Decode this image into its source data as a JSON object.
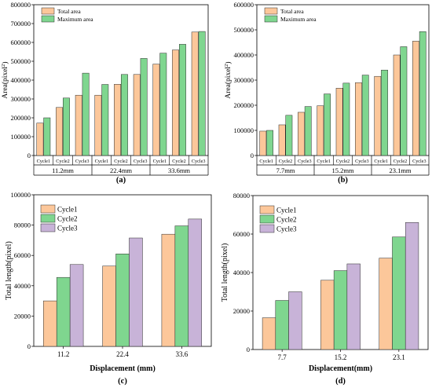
{
  "colors": {
    "total": "#fcc79a",
    "max": "#7fd68f",
    "cycle1": "#fcc79a",
    "cycle2": "#7fd68f",
    "cycle3": "#c8b3d8",
    "stroke": "#2a2a2a"
  },
  "chart_data": [
    {
      "type": "bar",
      "panel_label": "(a)",
      "ylabel": "Area(pixel²)",
      "ylim": [
        0,
        800000
      ],
      "yticks": [
        0,
        100000,
        200000,
        300000,
        400000,
        500000,
        600000,
        700000,
        800000
      ],
      "ytick_labels": [
        "0",
        "100000",
        "200000",
        "300000",
        "400000",
        "500000",
        "600000",
        "700000",
        "800000"
      ],
      "groups": [
        "11.2mm",
        "22.4mm",
        "33.6mm"
      ],
      "subcategories": [
        "Cycle1",
        "Cycle2",
        "Cycle3"
      ],
      "legend_position": "top-left",
      "series": [
        {
          "name": "Total area",
          "values": [
            [
              172000,
              255000,
              320000
            ],
            [
              320000,
              378000,
              430000
            ],
            [
              485000,
              560000,
              655000
            ]
          ]
        },
        {
          "name": "Maximum area",
          "values": [
            [
              200000,
              305000,
              437000
            ],
            [
              377000,
              430000,
              515000
            ],
            [
              543000,
              590000,
              658000
            ]
          ]
        }
      ]
    },
    {
      "type": "bar",
      "panel_label": "(b)",
      "ylabel": "Area(pixel²)",
      "ylim": [
        0,
        600000
      ],
      "yticks": [
        0,
        100000,
        200000,
        300000,
        400000,
        500000,
        600000
      ],
      "ytick_labels": [
        "0",
        "100000",
        "200000",
        "300000",
        "400000",
        "500000",
        "600000"
      ],
      "groups": [
        "7.7mm",
        "15.2mm",
        "23.1mm"
      ],
      "subcategories": [
        "Cycle1",
        "Cycle2",
        "Cycle3"
      ],
      "legend_position": "top-left",
      "series": [
        {
          "name": "Total area",
          "values": [
            [
              97000,
              122000,
              172000
            ],
            [
              198000,
              268000,
              290000
            ],
            [
              315000,
              400000,
              455000
            ]
          ]
        },
        {
          "name": "Maximum area",
          "values": [
            [
              100000,
              160000,
              195000
            ],
            [
              245000,
              288000,
              320000
            ],
            [
              340000,
              433000,
              493000
            ]
          ]
        }
      ]
    },
    {
      "type": "bar",
      "panel_label": "(c)",
      "xlabel": "Displacement (mm)",
      "ylabel": "Total length(pixel)",
      "ylim": [
        0,
        100000
      ],
      "yticks": [
        0,
        20000,
        40000,
        60000,
        80000,
        100000
      ],
      "ytick_labels": [
        "0",
        "20000",
        "40000",
        "60000",
        "80000",
        "100000"
      ],
      "categories": [
        "11.2",
        "22.4",
        "33.6"
      ],
      "legend_position": "top-left",
      "series": [
        {
          "name": "Cycle1",
          "values": [
            30000,
            53000,
            74000
          ]
        },
        {
          "name": "Cycle2",
          "values": [
            45500,
            61000,
            79500
          ]
        },
        {
          "name": "Cycle3",
          "values": [
            54000,
            71500,
            84000
          ]
        }
      ]
    },
    {
      "type": "bar",
      "panel_label": "(d)",
      "xlabel": "Displacement(mm)",
      "ylabel": "Total length(pixel)",
      "ylim": [
        0,
        80000
      ],
      "yticks": [
        0,
        20000,
        40000,
        60000,
        80000
      ],
      "ytick_labels": [
        "0",
        "20000",
        "40000",
        "60000",
        "80000"
      ],
      "categories": [
        "7.7",
        "15.2",
        "23.1"
      ],
      "legend_position": "top-left",
      "series": [
        {
          "name": "Cycle1",
          "values": [
            16500,
            36000,
            47500
          ]
        },
        {
          "name": "Cycle2",
          "values": [
            25500,
            41000,
            58500
          ]
        },
        {
          "name": "Cycle3",
          "values": [
            30000,
            44500,
            66000
          ]
        }
      ]
    }
  ]
}
